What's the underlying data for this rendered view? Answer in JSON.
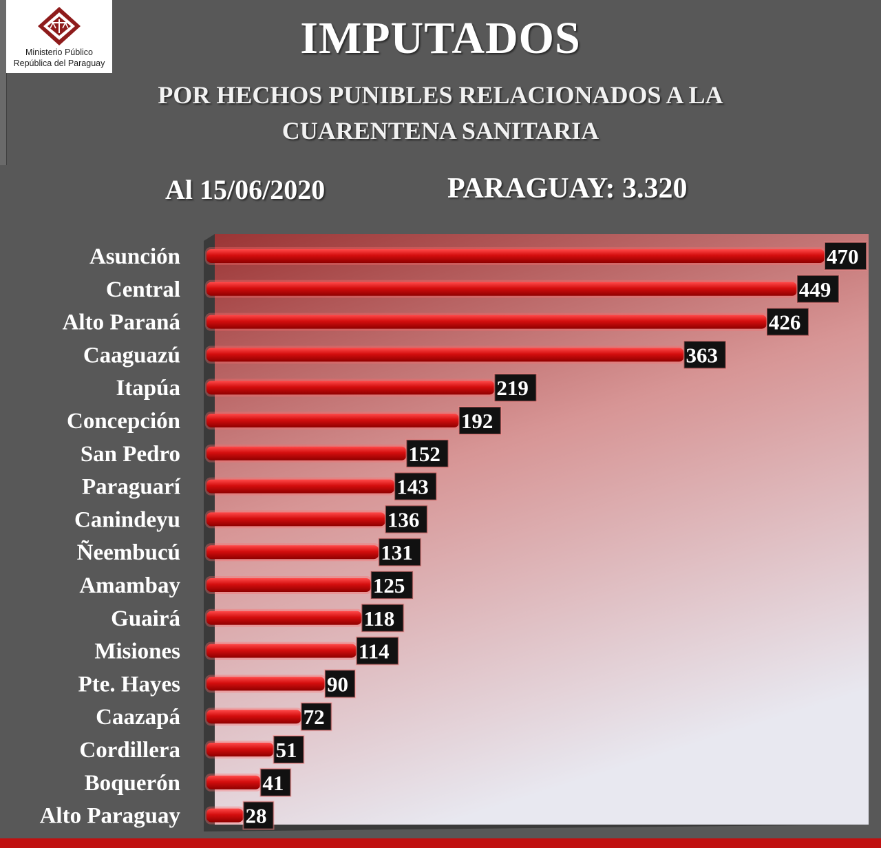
{
  "header": {
    "logo_line1": "Ministerio Público",
    "logo_line2": "República del Paraguay",
    "title": "IMPUTADOS",
    "subtitle_line1": "POR HECHOS PUNIBLES RELACIONADOS A LA",
    "subtitle_line2": "CUARENTENA SANITARIA",
    "date": "Al 15/06/2020",
    "total": "PARAGUAY: 3.320"
  },
  "colors": {
    "background": "#585858",
    "bar": "#d40e0e",
    "bar_dark": "#9a0000",
    "value_box": "#111111",
    "accent": "#c01010"
  },
  "chart_data": {
    "type": "bar",
    "orientation": "horizontal",
    "categories": [
      "Asunción",
      "Central",
      "Alto Paraná",
      "Caaguazú",
      "Itapúa",
      "Concepción",
      "San Pedro",
      "Paraguarí",
      "Canindeyu",
      "Ñeembucú",
      "Amambay",
      "Guairá",
      "Misiones",
      "Pte. Hayes",
      "Caazapá",
      "Cordillera",
      "Boquerón",
      "Alto Paraguay"
    ],
    "values": [
      470,
      449,
      426,
      363,
      219,
      192,
      152,
      143,
      136,
      131,
      125,
      118,
      114,
      90,
      72,
      51,
      41,
      28
    ],
    "value_labels": [
      "470",
      "449",
      "426",
      "363",
      "219",
      "192",
      "152",
      "143",
      "136",
      "131",
      "125",
      "118",
      "114",
      "90",
      "72",
      "51",
      "41",
      "28"
    ],
    "xlim": [
      0,
      470
    ],
    "grid": false,
    "legend": "none"
  }
}
